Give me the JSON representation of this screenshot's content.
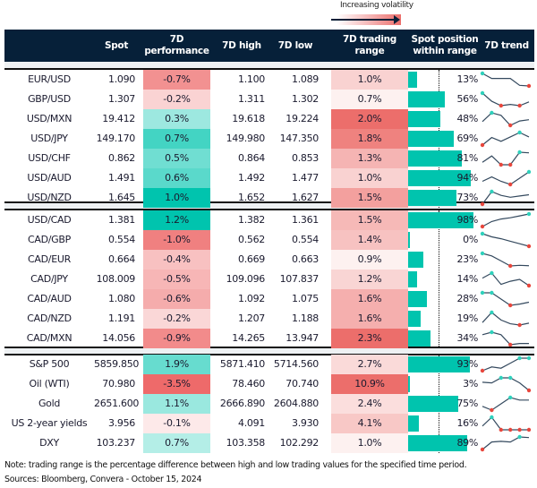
{
  "legend": {
    "label": "Increasing volatility"
  },
  "header": {
    "spot": "Spot",
    "perf": "7D performance",
    "high": "7D high",
    "low": "7D low",
    "range": "7D trading range",
    "position": "Spot position within range",
    "trend": "7D trend"
  },
  "colors": {
    "header": "#062039",
    "positive": "#00c4ae",
    "negative": "#ee6a6a",
    "range": "#ec6e6b",
    "bar": "#00c4ae",
    "trend_line": "#34495e",
    "trend_high": "#2ed1bc",
    "trend_low": "#e8463c"
  },
  "sections": [
    {
      "rows": [
        {
          "name": "EUR/USD",
          "spot": "1.090",
          "perf": "-0.7%",
          "high": "1.100",
          "low": "1.089",
          "range": "1.0%",
          "position": "13%",
          "trend": [
            1,
            0.6,
            0.6,
            0.6,
            0.05,
            0
          ]
        },
        {
          "name": "GBP/USD",
          "spot": "1.307",
          "perf": "-0.2%",
          "high": "1.311",
          "low": "1.302",
          "range": "0.7%",
          "position": "56%",
          "trend": [
            1,
            0.35,
            0,
            0.1,
            0,
            0.3
          ]
        },
        {
          "name": "USD/MXN",
          "spot": "19.412",
          "perf": "0.3%",
          "high": "19.618",
          "low": "19.224",
          "range": "2.0%",
          "position": "48%",
          "trend": [
            0.3,
            1,
            0.8,
            0,
            0.35,
            0.45
          ]
        },
        {
          "name": "USD/JPY",
          "spot": "149.170",
          "perf": "0.7%",
          "high": "149.980",
          "low": "147.350",
          "range": "1.8%",
          "position": "69%",
          "trend": [
            0,
            0.6,
            0.3,
            0.65,
            1,
            0.65
          ]
        },
        {
          "name": "USD/CHF",
          "spot": "0.862",
          "perf": "0.5%",
          "high": "0.864",
          "low": "0.853",
          "range": "1.3%",
          "position": "81%",
          "trend": [
            0.2,
            0.7,
            0,
            0,
            1,
            0.95
          ]
        },
        {
          "name": "USD/AUD",
          "spot": "1.491",
          "perf": "0.6%",
          "high": "1.492",
          "low": "1.477",
          "range": "1.0%",
          "position": "94%",
          "trend": [
            0.25,
            0.6,
            0.25,
            0,
            0.5,
            1
          ]
        },
        {
          "name": "USD/NZD",
          "spot": "1.645",
          "perf": "1.0%",
          "high": "1.652",
          "low": "1.627",
          "range": "1.5%",
          "position": "73%",
          "trend": [
            0,
            1,
            0.7,
            0.55,
            0.65,
            0.75
          ]
        }
      ]
    },
    {
      "rows": [
        {
          "name": "USD/CAD",
          "spot": "1.381",
          "perf": "1.2%",
          "high": "1.382",
          "low": "1.361",
          "range": "1.5%",
          "position": "98%",
          "trend": [
            0,
            0.4,
            0.6,
            0.7,
            0.85,
            1
          ]
        },
        {
          "name": "CAD/GBP",
          "spot": "0.554",
          "perf": "-1.0%",
          "high": "0.562",
          "low": "0.554",
          "range": "1.4%",
          "position": "0%",
          "trend": [
            1,
            0.75,
            0.6,
            0.4,
            0.2,
            0
          ]
        },
        {
          "name": "CAD/EUR",
          "spot": "0.664",
          "perf": "-0.4%",
          "high": "0.669",
          "low": "0.663",
          "range": "0.9%",
          "position": "23%",
          "trend": [
            1,
            0.8,
            0.4,
            0,
            0.05,
            0.02
          ]
        },
        {
          "name": "CAD/JPY",
          "spot": "108.009",
          "perf": "-0.5%",
          "high": "109.096",
          "low": "107.837",
          "range": "1.2%",
          "position": "14%",
          "trend": [
            0.6,
            1,
            0.1,
            0.35,
            0.5,
            0
          ]
        },
        {
          "name": "CAD/AUD",
          "spot": "1.080",
          "perf": "-0.6%",
          "high": "1.092",
          "low": "1.075",
          "range": "1.6%",
          "position": "28%",
          "trend": [
            1,
            1,
            0.5,
            0,
            0.1,
            0.25
          ]
        },
        {
          "name": "CAD/NZD",
          "spot": "1.191",
          "perf": "-0.2%",
          "high": "1.207",
          "low": "1.188",
          "range": "1.6%",
          "position": "19%",
          "trend": [
            0.2,
            1,
            0.4,
            0.1,
            0,
            0.15
          ]
        },
        {
          "name": "CAD/MXN",
          "spot": "14.056",
          "perf": "-0.9%",
          "high": "14.265",
          "low": "13.947",
          "range": "2.3%",
          "position": "34%",
          "trend": [
            0.8,
            1,
            0.8,
            0,
            0.1,
            0.1
          ]
        }
      ]
    },
    {
      "rows": [
        {
          "name": "S&P 500",
          "spot": "5859.850",
          "perf": "1.9%",
          "high": "5871.410",
          "low": "5714.560",
          "range": "2.7%",
          "position": "93%",
          "trend": [
            0,
            0.3,
            0.2,
            0.6,
            1,
            1
          ]
        },
        {
          "name": "Oil (WTI)",
          "spot": "70.980",
          "perf": "-3.5%",
          "high": "78.460",
          "low": "70.740",
          "range": "10.9%",
          "position": "3%",
          "trend": [
            0.65,
            0.6,
            1,
            1,
            0.6,
            0
          ]
        },
        {
          "name": "Gold",
          "spot": "2651.600",
          "perf": "1.1%",
          "high": "2666.890",
          "low": "2604.880",
          "range": "2.4%",
          "position": "75%",
          "trend": [
            0.3,
            0,
            0.5,
            1,
            0.8,
            0.8
          ]
        },
        {
          "name": "US 2-year yields",
          "spot": "3.956",
          "perf": "-0.1%",
          "high": "4.091",
          "low": "3.930",
          "range": "4.1%",
          "position": "16%",
          "trend": [
            0.3,
            1,
            0,
            0,
            0,
            0
          ]
        },
        {
          "name": "DXY",
          "spot": "103.237",
          "perf": "0.7%",
          "high": "103.358",
          "low": "102.292",
          "range": "1.0%",
          "position": "89%",
          "trend": [
            0,
            0.6,
            0.65,
            0.6,
            1,
            0.95
          ]
        }
      ]
    }
  ],
  "footer": {
    "note": "Note: trading range is the percentage difference between high and low trading values for the specified time period.",
    "sources": "Sources: Bloomberg, Convera - October 15, 2024"
  }
}
